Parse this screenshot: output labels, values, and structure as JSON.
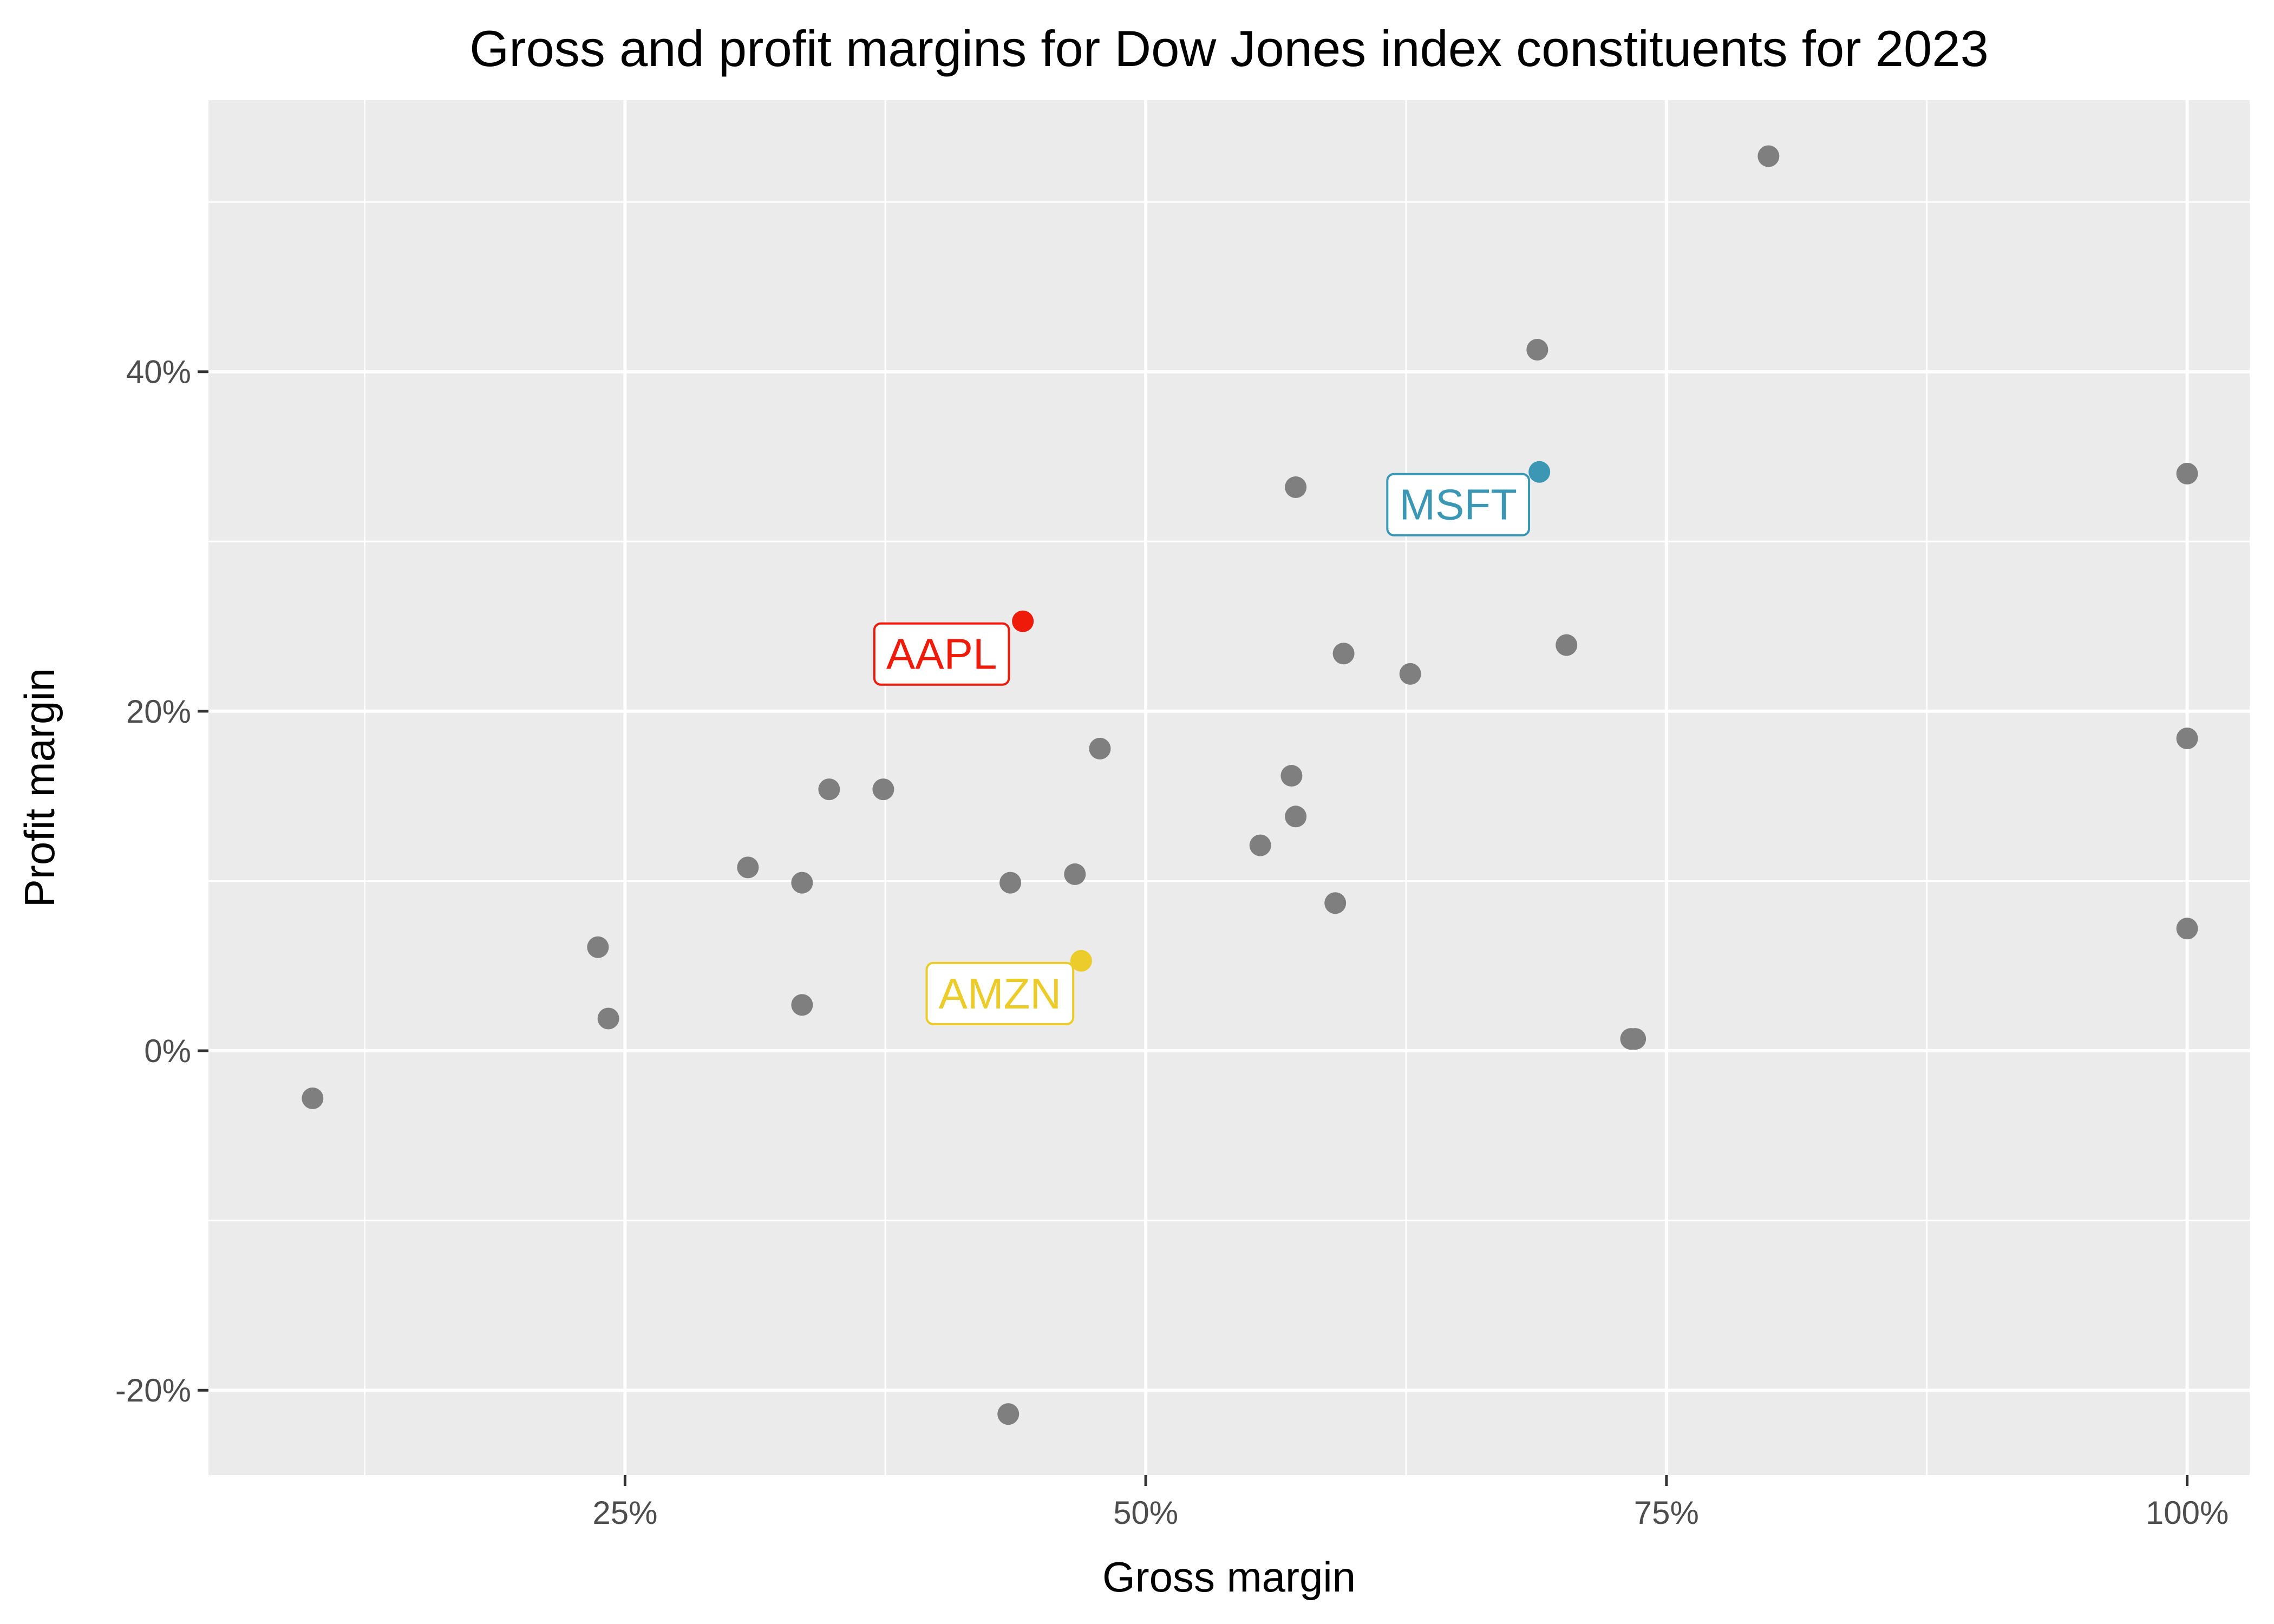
{
  "chart_data": {
    "type": "scatter",
    "title": "Gross and profit margins for Dow Jones index constituents for 2023",
    "xlabel": "Gross margin",
    "ylabel": "Profit margin",
    "xlim": [
      5,
      103
    ],
    "ylim": [
      -25,
      56
    ],
    "x_ticks": [
      25,
      50,
      75,
      100
    ],
    "x_tick_labels": [
      "25%",
      "50%",
      "75%",
      "100%"
    ],
    "x_minor_ticks": [
      12.5,
      37.5,
      62.5,
      87.5
    ],
    "y_ticks": [
      -20,
      0,
      20,
      40
    ],
    "y_tick_labels": [
      "-20%",
      "0%",
      "20%",
      "40%"
    ],
    "y_minor_ticks": [
      -10,
      10,
      30,
      50
    ],
    "grid": true,
    "background": "#ebebeb",
    "default_point_color": "#7f7f7f",
    "points": [
      {
        "x": 10.0,
        "y": -2.8
      },
      {
        "x": 23.7,
        "y": 6.1
      },
      {
        "x": 24.2,
        "y": 1.9
      },
      {
        "x": 30.9,
        "y": 10.8
      },
      {
        "x": 33.5,
        "y": 9.9
      },
      {
        "x": 33.5,
        "y": 2.7
      },
      {
        "x": 34.8,
        "y": 15.4
      },
      {
        "x": 37.4,
        "y": 15.4
      },
      {
        "x": 43.5,
        "y": 9.9
      },
      {
        "x": 43.4,
        "y": -21.4
      },
      {
        "x": 46.6,
        "y": 10.4
      },
      {
        "x": 47.8,
        "y": 17.8
      },
      {
        "x": 55.5,
        "y": 12.1
      },
      {
        "x": 57.0,
        "y": 16.2
      },
      {
        "x": 57.2,
        "y": 13.8
      },
      {
        "x": 57.2,
        "y": 33.2
      },
      {
        "x": 59.1,
        "y": 8.7
      },
      {
        "x": 59.5,
        "y": 23.4
      },
      {
        "x": 62.7,
        "y": 22.2
      },
      {
        "x": 68.8,
        "y": 41.3
      },
      {
        "x": 70.2,
        "y": 23.9
      },
      {
        "x": 73.3,
        "y": 0.7
      },
      {
        "x": 73.5,
        "y": 0.7
      },
      {
        "x": 79.9,
        "y": 52.7
      },
      {
        "x": 100.0,
        "y": 34.0
      },
      {
        "x": 100.0,
        "y": 18.4
      },
      {
        "x": 100.0,
        "y": 7.2
      },
      {
        "x": 44.1,
        "y": 25.3,
        "label": "AAPL",
        "color": "#ee1a0a"
      },
      {
        "x": 68.9,
        "y": 34.1,
        "label": "MSFT",
        "color": "#3b97b3"
      },
      {
        "x": 46.9,
        "y": 5.3,
        "label": "AMZN",
        "color": "#ebcc2a"
      }
    ]
  }
}
